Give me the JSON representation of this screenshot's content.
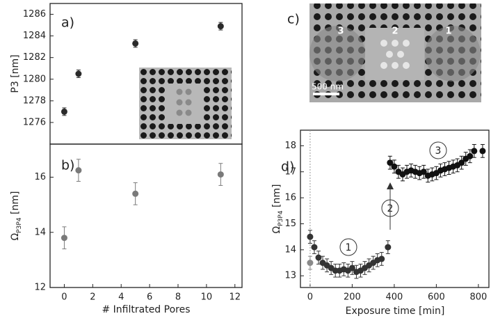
{
  "chart_data": [
    {
      "type": "scatter",
      "label": "a)",
      "ylabel": [
        "P3 [nm]"
      ],
      "x": [
        0,
        1,
        5,
        11
      ],
      "values": [
        1277,
        1280.5,
        1283.3,
        1284.9
      ],
      "error": 0.35,
      "color": "#2a2a2a",
      "xlim": [
        -1,
        12.5
      ],
      "ylim": [
        1274,
        1287
      ],
      "yticks": [
        1276,
        1278,
        1280,
        1282,
        1284,
        1286
      ]
    },
    {
      "type": "scatter",
      "label": "b)",
      "ylabel": [
        "Ω",
        "P3P4",
        " [nm]"
      ],
      "xlabel": "# Infiltrated Pores",
      "x": [
        0,
        1,
        5,
        11
      ],
      "values": [
        13.8,
        16.25,
        15.4,
        16.1
      ],
      "error": 0.4,
      "color": "#7a7a7a",
      "xlim": [
        -1,
        12.5
      ],
      "xticks": [
        0,
        2,
        4,
        6,
        8,
        10,
        12
      ],
      "ylim": [
        12,
        17.2
      ],
      "yticks": [
        12,
        14,
        16
      ]
    },
    {
      "type": "scatter",
      "label": "d)",
      "ylabel": [
        "Ω",
        "P3P4",
        " [nm]"
      ],
      "xlabel": "Exposure time [min]",
      "xlim": [
        -46,
        850
      ],
      "xticks": [
        0,
        200,
        400,
        600,
        800
      ],
      "ylim": [
        12.55,
        18.6
      ],
      "yticks": [
        13,
        14,
        15,
        16,
        17,
        18
      ],
      "vline": 0,
      "series": [
        {
          "color": "#8a8a8a",
          "error": 0.25,
          "x": [
            0
          ],
          "values": [
            13.5
          ]
        },
        {
          "color": "#333333",
          "error": 0.25,
          "x": [
            0,
            20,
            40,
            60,
            80,
            100,
            120,
            140,
            160,
            180,
            200,
            220,
            240,
            260,
            280,
            300,
            320,
            340,
            370
          ],
          "values": [
            14.5,
            14.1,
            13.7,
            13.5,
            13.4,
            13.3,
            13.2,
            13.2,
            13.25,
            13.2,
            13.3,
            13.15,
            13.2,
            13.3,
            13.4,
            13.5,
            13.6,
            13.65,
            14.1
          ]
        },
        {
          "color": "#111111",
          "error": 0.25,
          "x": [
            380,
            400,
            420,
            440,
            460,
            480,
            500,
            520,
            540,
            560,
            580,
            600,
            620,
            640,
            660,
            680,
            700,
            720,
            740,
            760,
            780,
            820
          ],
          "values": [
            17.35,
            17.2,
            17.0,
            16.9,
            17.0,
            17.05,
            17.0,
            16.95,
            17.0,
            16.85,
            16.9,
            16.95,
            17.05,
            17.1,
            17.15,
            17.2,
            17.25,
            17.35,
            17.5,
            17.6,
            17.8,
            17.8
          ]
        }
      ],
      "annotations": [
        "1",
        "2",
        "3"
      ]
    }
  ],
  "image": {
    "label": "c)",
    "markers": [
      "3",
      "2",
      "1"
    ],
    "scale_bar": "500 nm"
  }
}
